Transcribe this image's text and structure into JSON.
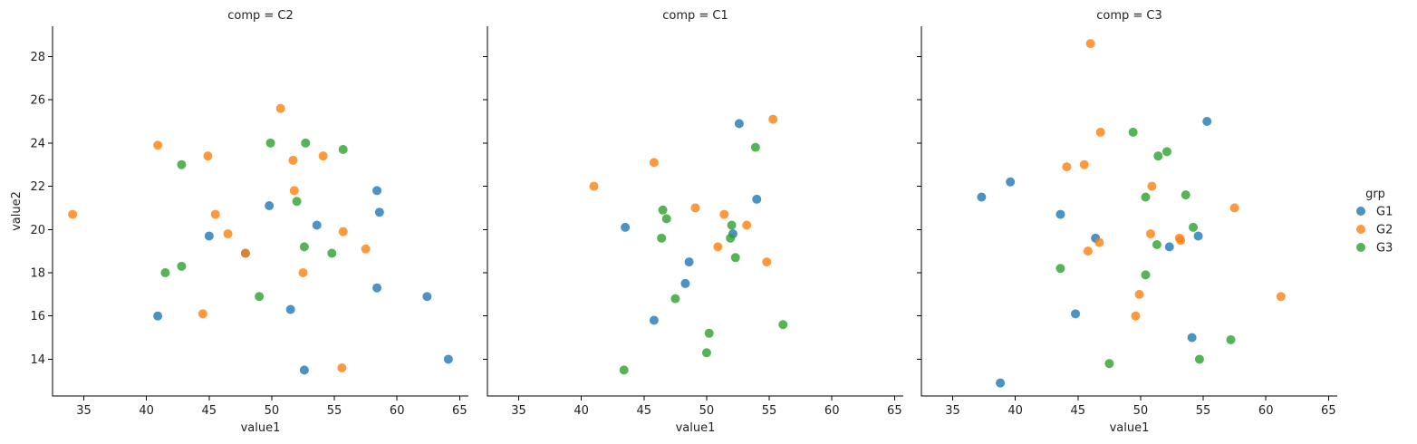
{
  "legend": {
    "title": "grp"
  },
  "chart_data": {
    "type": "scatter",
    "facet_by": "comp",
    "xlabel": "value1",
    "ylabel": "value2",
    "xlim": [
      32.5,
      65.7
    ],
    "ylim": [
      12.3,
      29.4
    ],
    "xticks": [
      35,
      40,
      45,
      50,
      55,
      60,
      65
    ],
    "yticks": [
      14,
      16,
      18,
      20,
      22,
      24,
      26,
      28
    ],
    "legend_placement": "right",
    "grid": false,
    "colors": {
      "G1": "#1f77b4",
      "G2": "#ff7f0e",
      "G3": "#2ca02c"
    },
    "groups": [
      "G1",
      "G2",
      "G3"
    ],
    "panels": [
      {
        "title": "comp = C2",
        "series": [
          {
            "name": "G1",
            "points": [
              [
                40.9,
                16.0
              ],
              [
                45.0,
                19.7
              ],
              [
                47.9,
                18.9
              ],
              [
                49.8,
                21.1
              ],
              [
                51.5,
                16.3
              ],
              [
                52.6,
                13.5
              ],
              [
                53.6,
                20.2
              ],
              [
                58.4,
                21.8
              ],
              [
                58.6,
                20.8
              ],
              [
                58.4,
                17.3
              ],
              [
                62.4,
                16.9
              ],
              [
                64.1,
                14.0
              ]
            ]
          },
          {
            "name": "G2",
            "points": [
              [
                34.1,
                20.7
              ],
              [
                40.9,
                23.9
              ],
              [
                44.5,
                16.1
              ],
              [
                44.9,
                23.4
              ],
              [
                45.5,
                20.7
              ],
              [
                46.5,
                19.8
              ],
              [
                47.9,
                18.9
              ],
              [
                50.7,
                25.6
              ],
              [
                51.7,
                23.2
              ],
              [
                51.8,
                21.8
              ],
              [
                52.5,
                18.0
              ],
              [
                54.1,
                23.4
              ],
              [
                55.6,
                13.6
              ],
              [
                55.7,
                19.9
              ],
              [
                57.5,
                19.1
              ]
            ]
          },
          {
            "name": "G3",
            "points": [
              [
                41.5,
                18.0
              ],
              [
                42.8,
                18.3
              ],
              [
                42.8,
                23.0
              ],
              [
                49.0,
                16.9
              ],
              [
                49.9,
                24.0
              ],
              [
                52.0,
                21.3
              ],
              [
                52.6,
                19.2
              ],
              [
                52.7,
                24.0
              ],
              [
                54.8,
                18.9
              ],
              [
                55.7,
                23.7
              ]
            ]
          }
        ]
      },
      {
        "title": "comp = C1",
        "series": [
          {
            "name": "G1",
            "points": [
              [
                43.5,
                20.1
              ],
              [
                45.8,
                15.8
              ],
              [
                48.3,
                17.5
              ],
              [
                48.6,
                18.5
              ],
              [
                52.1,
                19.8
              ],
              [
                52.6,
                24.9
              ],
              [
                54.0,
                21.4
              ]
            ]
          },
          {
            "name": "G2",
            "points": [
              [
                41.0,
                22.0
              ],
              [
                45.8,
                23.1
              ],
              [
                49.1,
                21.0
              ],
              [
                50.9,
                19.2
              ],
              [
                51.4,
                20.7
              ],
              [
                53.2,
                20.2
              ],
              [
                54.8,
                18.5
              ],
              [
                55.3,
                25.1
              ]
            ]
          },
          {
            "name": "G3",
            "points": [
              [
                43.4,
                13.5
              ],
              [
                46.4,
                19.6
              ],
              [
                46.5,
                20.9
              ],
              [
                46.8,
                20.5
              ],
              [
                47.5,
                16.8
              ],
              [
                50.0,
                14.3
              ],
              [
                50.2,
                15.2
              ],
              [
                51.9,
                19.6
              ],
              [
                52.0,
                20.2
              ],
              [
                52.3,
                18.7
              ],
              [
                53.9,
                23.8
              ],
              [
                56.1,
                15.6
              ]
            ]
          }
        ]
      },
      {
        "title": "comp = C3",
        "series": [
          {
            "name": "G1",
            "points": [
              [
                37.3,
                21.5
              ],
              [
                38.8,
                12.9
              ],
              [
                39.6,
                22.2
              ],
              [
                43.6,
                20.7
              ],
              [
                44.8,
                16.1
              ],
              [
                46.4,
                19.6
              ],
              [
                52.3,
                19.2
              ],
              [
                54.1,
                15.0
              ],
              [
                54.6,
                19.7
              ],
              [
                55.3,
                25.0
              ]
            ]
          },
          {
            "name": "G2",
            "points": [
              [
                44.1,
                22.9
              ],
              [
                45.5,
                23.0
              ],
              [
                45.8,
                19.0
              ],
              [
                46.0,
                28.6
              ],
              [
                46.7,
                19.4
              ],
              [
                46.8,
                24.5
              ],
              [
                49.6,
                16.0
              ],
              [
                49.9,
                17.0
              ],
              [
                50.8,
                19.8
              ],
              [
                50.9,
                22.0
              ],
              [
                53.1,
                19.6
              ],
              [
                53.2,
                19.5
              ],
              [
                57.5,
                21.0
              ],
              [
                61.2,
                16.9
              ]
            ]
          },
          {
            "name": "G3",
            "points": [
              [
                43.6,
                18.2
              ],
              [
                47.5,
                13.8
              ],
              [
                49.4,
                24.5
              ],
              [
                50.4,
                21.5
              ],
              [
                50.4,
                17.9
              ],
              [
                51.3,
                19.3
              ],
              [
                51.4,
                23.4
              ],
              [
                52.1,
                23.6
              ],
              [
                53.6,
                21.6
              ],
              [
                54.2,
                20.1
              ],
              [
                54.7,
                14.0
              ],
              [
                57.2,
                14.9
              ]
            ]
          }
        ]
      }
    ]
  }
}
